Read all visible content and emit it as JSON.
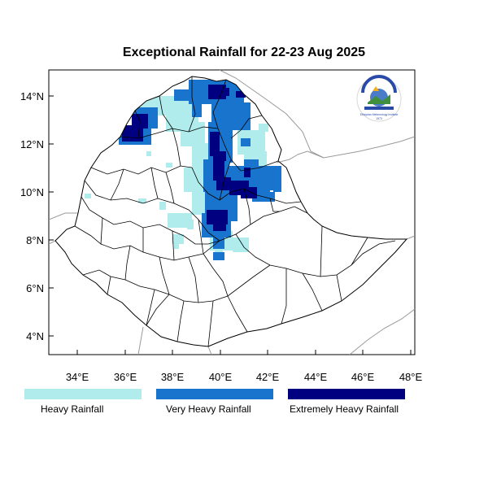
{
  "title": "Exceptional Rainfall for 22-23 Aug 2025",
  "axes": {
    "x_ticks": [
      "34°E",
      "36°E",
      "38°E",
      "40°E",
      "42°E",
      "44°E",
      "46°E",
      "48°E"
    ],
    "y_ticks": [
      "14°N",
      "12°N",
      "10°N",
      "8°N",
      "6°N",
      "4°N"
    ]
  },
  "legend": [
    {
      "label": "Heavy Rainfall",
      "color": "#b0ecec"
    },
    {
      "label": "Very Heavy Rainfall",
      "color": "#1874cd"
    },
    {
      "label": "Extremely Heavy Rainfall",
      "color": "#000080"
    }
  ],
  "logo": {
    "text": "Ethiopian Meteorology Institute",
    "year": "1973"
  },
  "colors": {
    "heavy": "#b0ecec",
    "very_heavy": "#1874cd",
    "extreme": "#000080",
    "border": "#000000",
    "neighbor": "#999999"
  }
}
